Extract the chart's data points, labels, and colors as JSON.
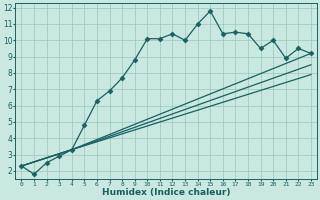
{
  "xlabel": "Humidex (Indice chaleur)",
  "background_color": "#c8e8e0",
  "grid_color": "#98c8c0",
  "line_color": "#1a6060",
  "xlim": [
    -0.5,
    23.5
  ],
  "ylim": [
    1.5,
    12.3
  ],
  "xticks": [
    0,
    1,
    2,
    3,
    4,
    5,
    6,
    7,
    8,
    9,
    10,
    11,
    12,
    13,
    14,
    15,
    16,
    17,
    18,
    19,
    20,
    21,
    22,
    23
  ],
  "yticks": [
    2,
    3,
    4,
    5,
    6,
    7,
    8,
    9,
    10,
    11,
    12
  ],
  "series": [
    {
      "x": [
        0,
        1,
        2,
        3,
        4,
        5,
        6,
        7,
        8,
        9,
        10,
        11,
        12,
        13,
        14,
        15,
        16,
        17,
        18,
        19,
        20,
        21,
        22,
        23
      ],
      "y": [
        2.3,
        1.8,
        2.5,
        2.9,
        3.3,
        4.8,
        6.3,
        6.9,
        7.7,
        8.8,
        10.1,
        10.1,
        10.4,
        10.0,
        11.0,
        11.8,
        10.4,
        10.5,
        10.4,
        9.5,
        10.0,
        8.9,
        9.5,
        9.2
      ],
      "marker": "D",
      "markersize": 2.5,
      "linewidth": 0.9
    },
    {
      "x": [
        0,
        4,
        23
      ],
      "y": [
        2.3,
        3.3,
        9.2
      ],
      "marker": null,
      "linewidth": 0.9
    },
    {
      "x": [
        0,
        4,
        23
      ],
      "y": [
        2.3,
        3.3,
        8.5
      ],
      "marker": null,
      "linewidth": 0.9
    },
    {
      "x": [
        0,
        4,
        23
      ],
      "y": [
        2.3,
        3.3,
        7.9
      ],
      "marker": null,
      "linewidth": 0.9
    }
  ]
}
